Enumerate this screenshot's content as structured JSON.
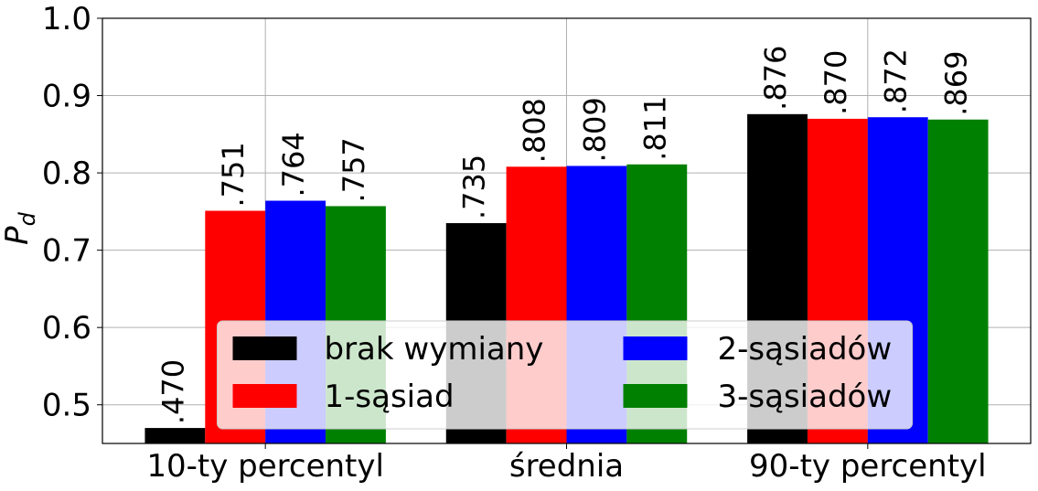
{
  "chart_data": {
    "type": "bar",
    "y_label": "P",
    "y_label_sub": "d",
    "categories": [
      "10-ty percentyl",
      "średnia",
      "90-ty percentyl"
    ],
    "series": [
      {
        "name": "brak wymiany",
        "color": "#000000",
        "values": [
          0.47,
          0.735,
          0.876
        ],
        "value_labels": [
          ".470",
          ".735",
          ".876"
        ]
      },
      {
        "name": "1-sąsiad",
        "color": "#ff0000",
        "values": [
          0.751,
          0.808,
          0.87
        ],
        "value_labels": [
          ".751",
          ".808",
          ".870"
        ]
      },
      {
        "name": "2-sąsiadów",
        "color": "#0000ff",
        "values": [
          0.764,
          0.809,
          0.872
        ],
        "value_labels": [
          ".764",
          ".809",
          ".872"
        ]
      },
      {
        "name": "3-sąsiadów",
        "color": "#008000",
        "values": [
          0.757,
          0.811,
          0.869
        ],
        "value_labels": [
          ".757",
          ".811",
          ".869"
        ]
      }
    ],
    "ylim": [
      0.45,
      1.0
    ],
    "yticks": [
      0.5,
      0.6,
      0.7,
      0.8,
      0.9,
      {
        "value": 1.0,
        "label": "1.0"
      }
    ],
    "grid": true,
    "legend_loc": "lower center",
    "legend_columns": 2
  }
}
